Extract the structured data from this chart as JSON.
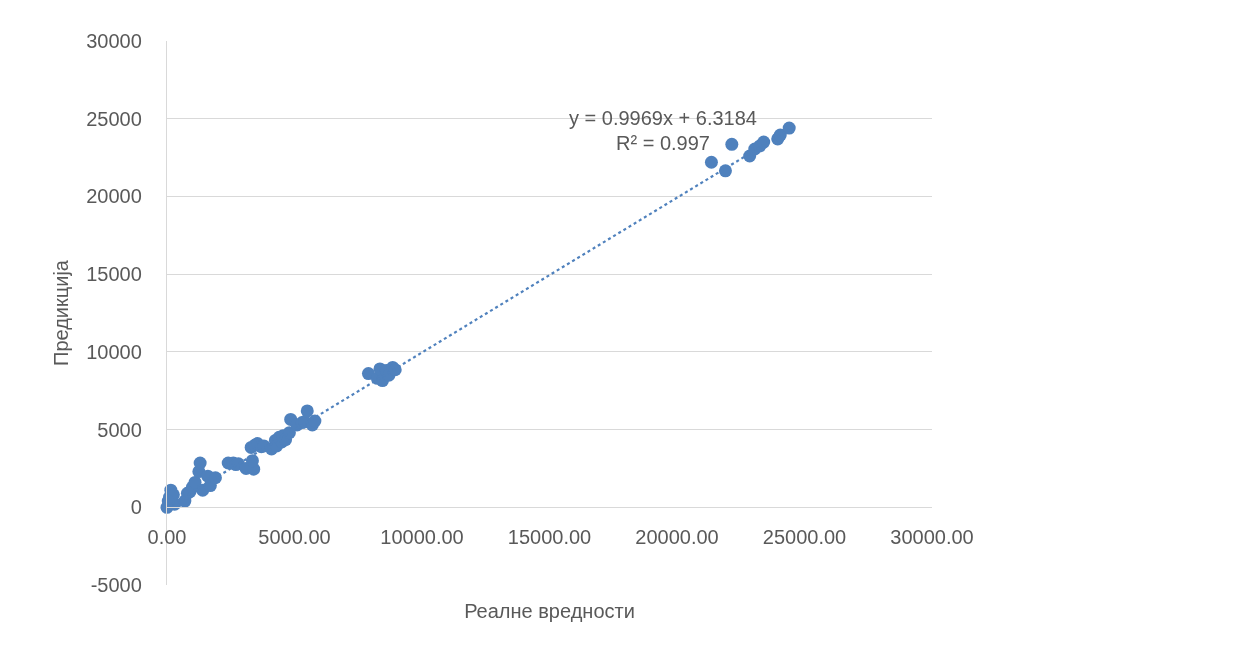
{
  "chart_data": {
    "type": "scatter",
    "xlabel": "Реалне вредности",
    "ylabel": "Предикција",
    "annotations": [
      "y = 0.9969x + 6.3184",
      "R² = 0.997"
    ],
    "xlim": [
      0,
      30000
    ],
    "ylim": [
      -5000,
      30000
    ],
    "xticks": [
      {
        "value": 0,
        "label": "0.00"
      },
      {
        "value": 5000,
        "label": "5000.00"
      },
      {
        "value": 10000,
        "label": "10000.00"
      },
      {
        "value": 15000,
        "label": "15000.00"
      },
      {
        "value": 20000,
        "label": "20000.00"
      },
      {
        "value": 25000,
        "label": "25000.00"
      },
      {
        "value": 30000,
        "label": "30000.00"
      }
    ],
    "yticks": [
      -5000,
      0,
      5000,
      10000,
      15000,
      20000,
      25000,
      30000
    ],
    "grid": "y",
    "marker": "circle",
    "series": [
      {
        "type": "scatter",
        "color": "#4f81bd",
        "x": [
          0,
          100,
          150,
          300,
          700,
          250,
          50,
          800,
          900,
          1000,
          1100,
          1250,
          1300,
          1400,
          1600,
          1700,
          1900,
          2400,
          2600,
          2700,
          2800,
          3100,
          3400,
          3300,
          3450,
          3550,
          3700,
          3800,
          3350,
          4100,
          4250,
          4300,
          4400,
          4500,
          4550,
          4650,
          4800,
          4850,
          5100,
          5300,
          5400,
          5500,
          5700,
          5800,
          7900,
          8250,
          8350,
          8450,
          8600,
          8700,
          8850,
          8950,
          21350,
          21900,
          22150,
          22850,
          23050,
          23250,
          23400,
          23950,
          24050,
          24400
        ],
        "values": [
          0,
          650,
          1100,
          200,
          400,
          800,
          400,
          900,
          1000,
          1300,
          1600,
          2300,
          2850,
          1100,
          2000,
          1400,
          1900,
          2850,
          2850,
          2750,
          2800,
          2500,
          2450,
          3850,
          4000,
          4100,
          3900,
          3950,
          3000,
          3750,
          4300,
          3950,
          4500,
          4200,
          4600,
          4350,
          4800,
          5650,
          5300,
          5450,
          5500,
          6200,
          5300,
          5550,
          8600,
          8300,
          8900,
          8150,
          8800,
          8500,
          9000,
          8850,
          22200,
          21650,
          23350,
          22600,
          23050,
          23250,
          23500,
          23700,
          23950,
          24400
        ]
      },
      {
        "type": "line",
        "color": "#4f81bd",
        "marker": "none",
        "line_style": "dotted",
        "x": [
          0,
          24400
        ],
        "values": [
          0,
          24300
        ]
      }
    ]
  }
}
